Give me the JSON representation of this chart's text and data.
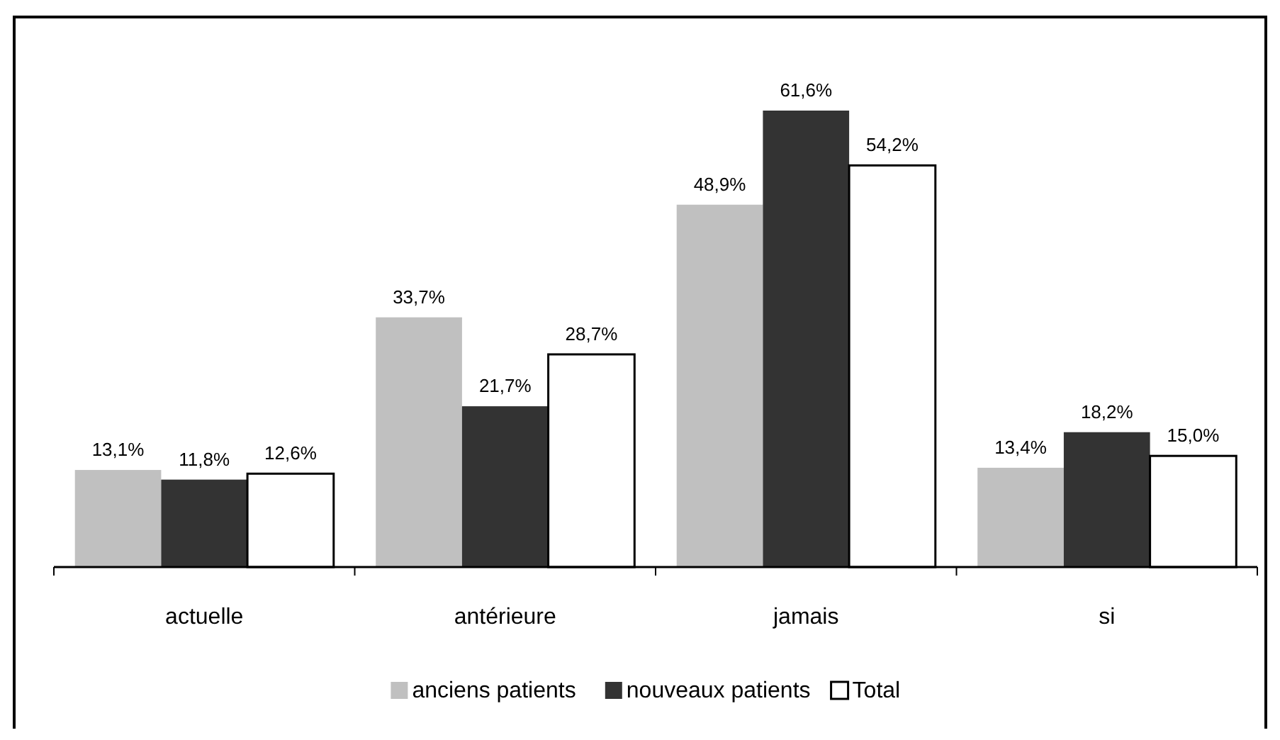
{
  "chart_data": {
    "type": "bar",
    "categories": [
      "actuelle",
      "antérieure",
      "jamais",
      "si"
    ],
    "series": [
      {
        "name": "anciens patients",
        "color": "#c0c0c0",
        "values": [
          13.1,
          33.7,
          48.9,
          13.4
        ],
        "value_labels": [
          "13,1%",
          "33,7%",
          "48,9%",
          "13,4%"
        ]
      },
      {
        "name": "nouveaux patients",
        "color": "#333333",
        "values": [
          11.8,
          21.7,
          61.6,
          18.2
        ],
        "value_labels": [
          "11,8%",
          "21,7%",
          "61,6%",
          "18,2%"
        ]
      },
      {
        "name": "Total",
        "color": "#ffffff",
        "values": [
          12.6,
          28.7,
          54.2,
          15.0
        ],
        "value_labels": [
          "12,6%",
          "28,7%",
          "54,2%",
          "15,0%"
        ]
      }
    ],
    "legend": "bottom"
  }
}
